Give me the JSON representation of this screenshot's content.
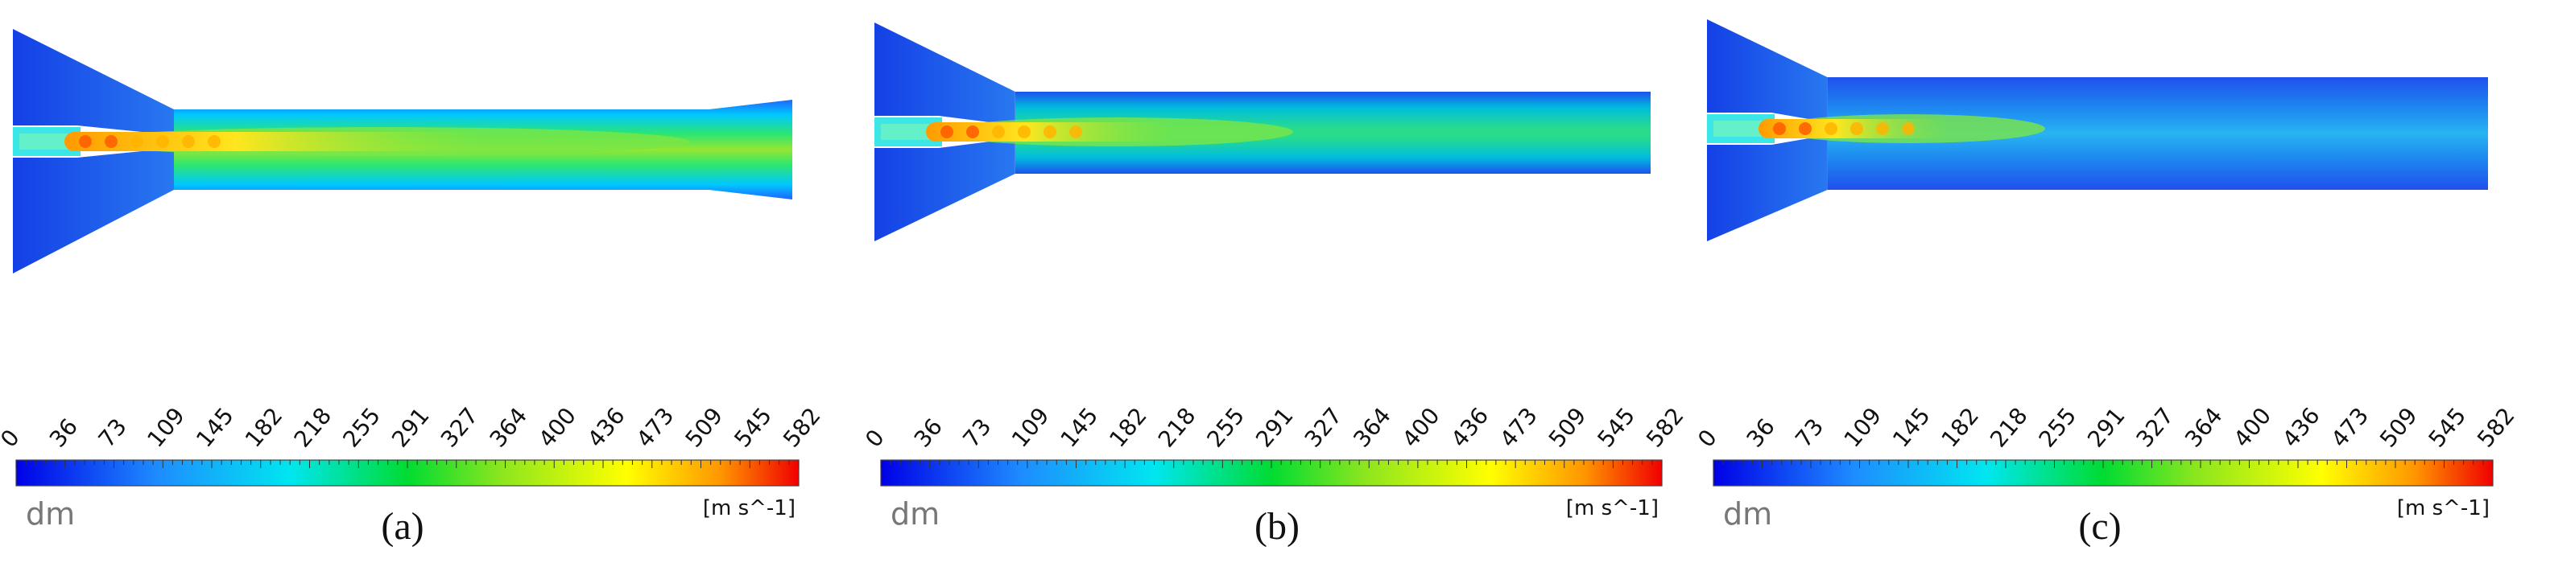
{
  "panels": [
    {
      "caption": "(a)",
      "quantity": "dm",
      "unit": "[m s^-1]",
      "ticks": [
        0,
        36,
        73,
        109,
        145,
        182,
        218,
        255,
        291,
        327,
        364,
        400,
        436,
        473,
        509,
        545,
        582
      ]
    },
    {
      "caption": "(b)",
      "quantity": "dm",
      "unit": "[m s^-1]",
      "ticks": [
        0,
        36,
        73,
        109,
        145,
        182,
        218,
        255,
        291,
        327,
        364,
        400,
        436,
        473,
        509,
        545,
        582
      ]
    },
    {
      "caption": "(c)",
      "quantity": "dm",
      "unit": "[m s^-1]",
      "ticks": [
        0,
        36,
        73,
        109,
        145,
        182,
        218,
        255,
        291,
        327,
        364,
        400,
        436,
        473,
        509,
        545,
        582
      ]
    }
  ]
}
